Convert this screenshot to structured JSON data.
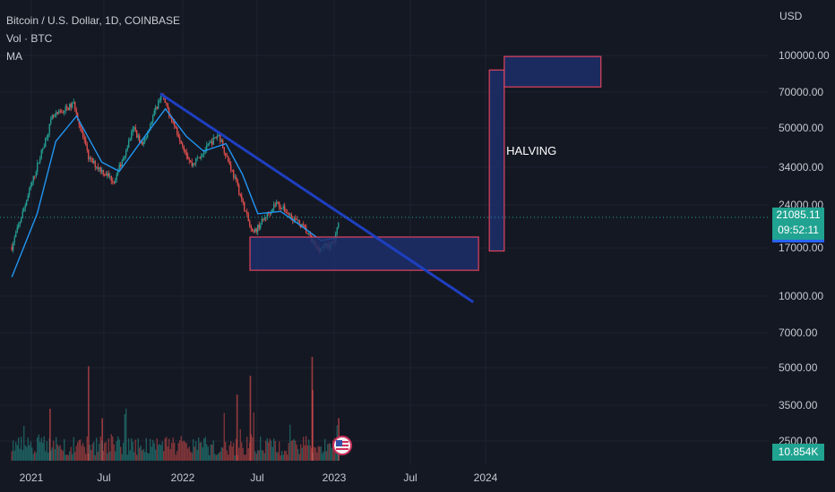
{
  "legend": {
    "symbol": "Bitcoin / U.S. Dollar, 1D, COINBASE",
    "volume": "Vol · BTC",
    "ma": "MA"
  },
  "colors": {
    "background": "#141823",
    "up": "#26a69a",
    "down": "#ef5350",
    "ma_line": "#2196f3",
    "trendline": "#1e3fc0",
    "zone_border": "#e0435e",
    "zone_fill": "#1c2f6b",
    "price_badge": "#20a391"
  },
  "price_badge": {
    "price": "21085.11",
    "countdown": "09:52:11"
  },
  "volume_badge": "10.854K",
  "icons": {
    "event_flag": "us-flag-icon"
  },
  "chart_data": {
    "type": "candlestick",
    "title": "Bitcoin / U.S. Dollar, 1D, COINBASE",
    "y_scale": "log",
    "y_axis_unit": "USD",
    "x_tick_labels": [
      "2021",
      "Jul",
      "2022",
      "Jul",
      "2023",
      "Jul",
      "2024"
    ],
    "y_tick_labels": [
      "100000.00",
      "70000.00",
      "50000.00",
      "34000.00",
      "24000.00",
      "17000.00",
      "10000.00",
      "7000.00",
      "5000.00",
      "3500.00",
      "2500.00"
    ],
    "price_path": [
      {
        "x": "2020-11-15",
        "y": 16000
      },
      {
        "x": "2021-01-01",
        "y": 29000
      },
      {
        "x": "2021-02-20",
        "y": 55000
      },
      {
        "x": "2021-04-14",
        "y": 63000
      },
      {
        "x": "2021-05-20",
        "y": 37000
      },
      {
        "x": "2021-07-20",
        "y": 30000
      },
      {
        "x": "2021-09-05",
        "y": 50000
      },
      {
        "x": "2021-09-25",
        "y": 42000
      },
      {
        "x": "2021-11-10",
        "y": 69000
      },
      {
        "x": "2022-01-22",
        "y": 35000
      },
      {
        "x": "2022-03-28",
        "y": 47000
      },
      {
        "x": "2022-05-12",
        "y": 29000
      },
      {
        "x": "2022-06-18",
        "y": 18000
      },
      {
        "x": "2022-08-14",
        "y": 24500
      },
      {
        "x": "2022-10-20",
        "y": 19200
      },
      {
        "x": "2022-11-21",
        "y": 15700
      },
      {
        "x": "2022-12-31",
        "y": 16600
      },
      {
        "x": "2023-01-13",
        "y": 21085
      }
    ],
    "moving_average": [
      {
        "x": "2020-11-15",
        "y": 12000
      },
      {
        "x": "2021-01-15",
        "y": 22000
      },
      {
        "x": "2021-03-01",
        "y": 44000
      },
      {
        "x": "2021-04-20",
        "y": 56000
      },
      {
        "x": "2021-06-20",
        "y": 36000
      },
      {
        "x": "2021-08-01",
        "y": 33000
      },
      {
        "x": "2021-10-01",
        "y": 46000
      },
      {
        "x": "2021-11-20",
        "y": 60000
      },
      {
        "x": "2022-01-10",
        "y": 46000
      },
      {
        "x": "2022-02-20",
        "y": 40000
      },
      {
        "x": "2022-04-15",
        "y": 43000
      },
      {
        "x": "2022-05-25",
        "y": 32000
      },
      {
        "x": "2022-07-01",
        "y": 22000
      },
      {
        "x": "2022-08-25",
        "y": 22500
      },
      {
        "x": "2022-10-15",
        "y": 19500
      },
      {
        "x": "2022-12-01",
        "y": 17000
      },
      {
        "x": "2023-01-10",
        "y": 17500
      }
    ],
    "volume_spikes": [
      {
        "x": "2021-02-15",
        "v": 0.55
      },
      {
        "x": "2021-05-19",
        "v": 1.0
      },
      {
        "x": "2021-06-21",
        "v": 0.45
      },
      {
        "x": "2022-05-12",
        "v": 0.7
      },
      {
        "x": "2022-06-13",
        "v": 0.9
      },
      {
        "x": "2022-11-09",
        "v": 1.1
      },
      {
        "x": "2022-11-10",
        "v": 0.75
      },
      {
        "x": "2023-01-12",
        "v": 0.45
      }
    ],
    "trendline": [
      {
        "x": "2021-11-10",
        "y": 69000
      },
      {
        "x": "2023-11-30",
        "y": 9500
      }
    ],
    "zones": [
      {
        "x0": "2022-06-12",
        "x1": "2023-12-15",
        "y0": 12800,
        "y1": 17600
      },
      {
        "x0": "2024-01-10",
        "x1": "2024-02-15",
        "y0": 15400,
        "y1": 87000
      },
      {
        "x0": "2024-02-15",
        "x1": "2024-10-05",
        "y0": 74000,
        "y1": 99000
      }
    ],
    "annotations": [
      {
        "text": "HALVING",
        "x": "2024-02-20",
        "y": 40000
      }
    ],
    "current_price": 21085.11
  }
}
